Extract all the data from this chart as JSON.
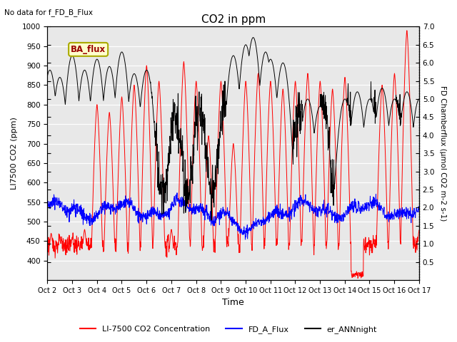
{
  "title": "CO2 in ppm",
  "topleft_text": "No data for f_FD_B_Flux",
  "annotation_text": "BA_flux",
  "xlabel": "Time",
  "ylabel_left": "LI7500 CO2 (ppm)",
  "ylabel_right": "FD Chamberflux (μmol CO2 m-2 s-1)",
  "ylim_left": [
    350,
    1000
  ],
  "ylim_right": [
    0.0,
    7.0
  ],
  "yticks_left": [
    400,
    450,
    500,
    550,
    600,
    650,
    700,
    750,
    800,
    850,
    900,
    950,
    1000
  ],
  "yticks_right": [
    0.5,
    1.0,
    1.5,
    2.0,
    2.5,
    3.0,
    3.5,
    4.0,
    4.5,
    5.0,
    5.5,
    6.0,
    6.5,
    7.0
  ],
  "xtick_labels": [
    "Oct 2",
    "Oct 3",
    "Oct 4",
    "Oct 5",
    "Oct 6",
    "Oct 7",
    "Oct 8",
    "Oct 9",
    "Oct 10",
    "Oct 11",
    "Oct 12",
    "Oct 13",
    "Oct 14",
    "Oct 15",
    "Oct 16",
    "Oct 17"
  ],
  "line_colors": {
    "red": "#ff0000",
    "blue": "#0000ff",
    "black": "#000000"
  },
  "legend_labels": [
    "LI-7500 CO2 Concentration",
    "FD_A_Flux",
    "er_ANNnight"
  ],
  "bg_color": "#e8e8e8",
  "annotation_facecolor": "#ffffcc",
  "annotation_edgecolor": "#aaaa00",
  "annotation_textcolor": "#990000",
  "n_points": 1500
}
